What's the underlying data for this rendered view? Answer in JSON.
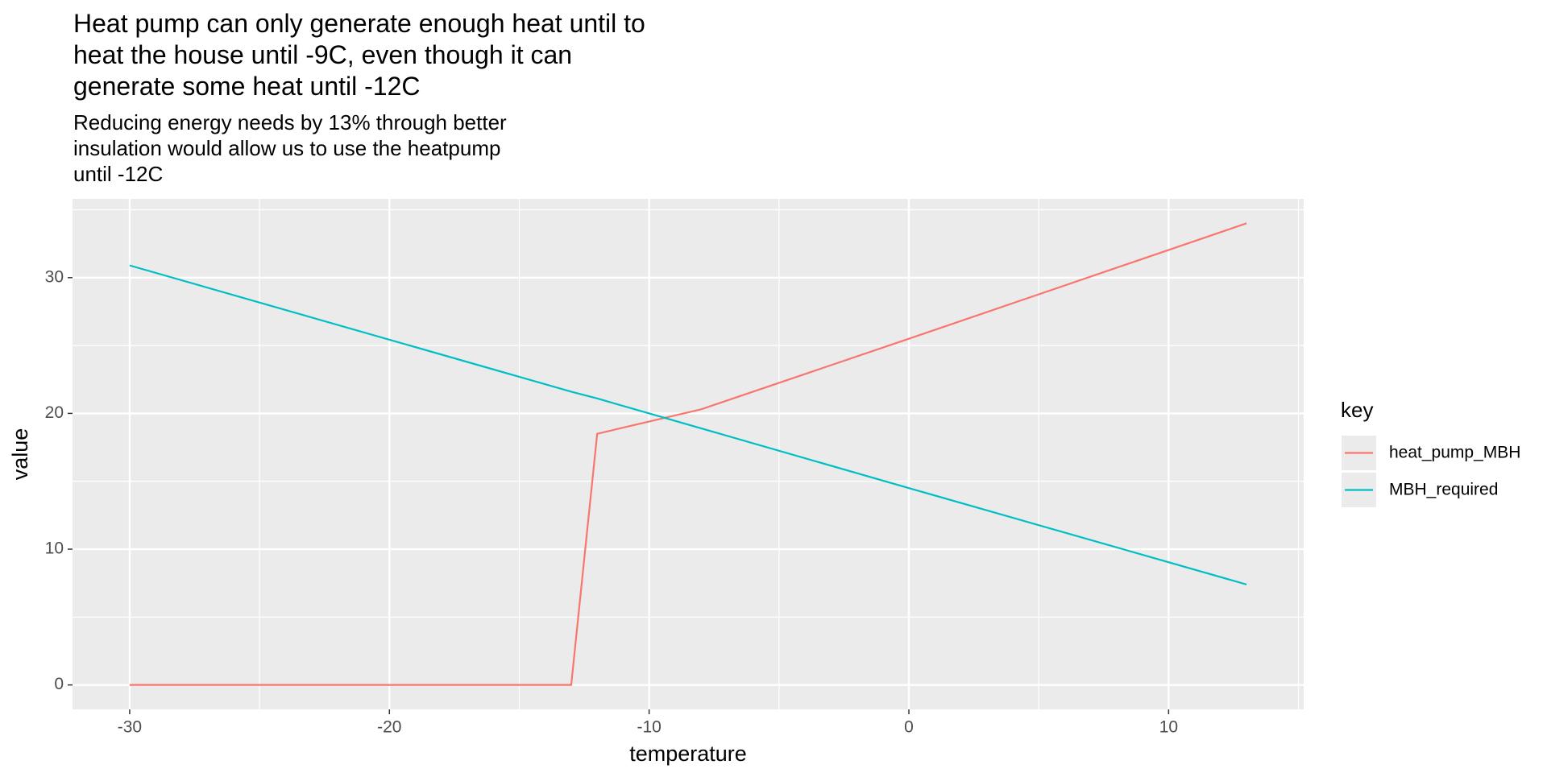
{
  "chart_data": {
    "type": "line",
    "title": "Heat pump can only generate enough heat until to\nheat the house until -9C, even though it can\ngenerate some heat until -12C",
    "subtitle": "Reducing energy needs by 13% through better\ninsulation would allow us to use the heatpump\nuntil -12C",
    "x_label": "temperature",
    "y_label": "value",
    "legend_title": "key",
    "legend_position": "right",
    "x": [
      -30,
      -13,
      -12,
      -8,
      0,
      13
    ],
    "series": [
      {
        "name": "heat_pump_MBH",
        "color": "#f8766d",
        "values": [
          0,
          0,
          18.5,
          20.3,
          25.5,
          34
        ]
      },
      {
        "name": "MBH_required",
        "color": "#00bfc4",
        "values": [
          30.9,
          21.6,
          21.1,
          18.9,
          14.5,
          7.4
        ]
      }
    ],
    "xlim": [
      -32.2,
      15.2
    ],
    "xticks": [
      -30,
      -20,
      -10,
      0,
      10
    ],
    "ylim": [
      -1.8,
      35.8
    ],
    "yticks": [
      0,
      10,
      20,
      30
    ],
    "grid": true
  }
}
